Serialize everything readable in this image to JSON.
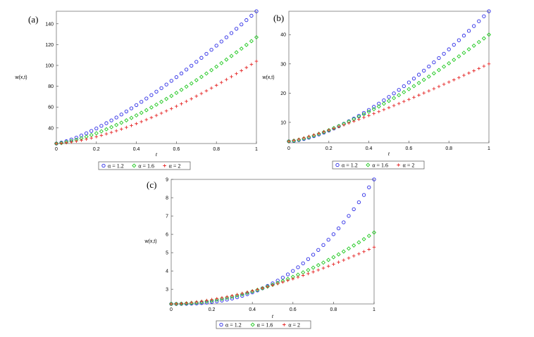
{
  "chart_data": [
    {
      "type": "scatter",
      "panel_label": "(a)",
      "xlabel": "t",
      "ylabel": "w(x,t)",
      "xlim": [
        0,
        1
      ],
      "ylim": [
        25,
        152
      ],
      "x_ticks": [
        0,
        0.2,
        0.4,
        0.6,
        0.8,
        1
      ],
      "x_tick_labels": [
        "0",
        "0.2",
        "0.4",
        "0.6",
        "0.8",
        "1"
      ],
      "y_ticks": [
        40,
        60,
        80,
        100,
        120,
        140
      ],
      "x": [
        0,
        0.025,
        0.05,
        0.075,
        0.1,
        0.125,
        0.15,
        0.175,
        0.2,
        0.225,
        0.25,
        0.275,
        0.3,
        0.325,
        0.35,
        0.375,
        0.4,
        0.425,
        0.45,
        0.475,
        0.5,
        0.525,
        0.55,
        0.575,
        0.6,
        0.625,
        0.65,
        0.675,
        0.7,
        0.725,
        0.75,
        0.775,
        0.8,
        0.825,
        0.85,
        0.875,
        0.9,
        0.925,
        0.95,
        0.975,
        1
      ],
      "series": [
        {
          "name": "α = 1.2",
          "marker": "circle",
          "color": "#2a2ae6",
          "y_start": 25,
          "y_end": 152,
          "exponent": 1.35
        },
        {
          "name": "α = 1.6",
          "marker": "diamond",
          "color": "#22c922",
          "y_start": 25,
          "y_end": 127,
          "exponent": 1.45
        },
        {
          "name": "α = 2",
          "marker": "plus",
          "color": "#e62a2a",
          "y_start": 25,
          "y_end": 104,
          "exponent": 1.55
        }
      ],
      "legend_position": "bottom"
    },
    {
      "type": "scatter",
      "panel_label": "(b)",
      "xlabel": "t",
      "ylabel": "w(x,t)",
      "xlim": [
        0,
        1
      ],
      "ylim": [
        3,
        48
      ],
      "x_ticks": [
        0,
        0.2,
        0.4,
        0.6,
        0.8,
        1
      ],
      "x_tick_labels": [
        "0",
        "0.2",
        "0.4",
        "0.6",
        "0.8",
        "1"
      ],
      "y_ticks": [
        10,
        20,
        30,
        40
      ],
      "x": [
        0,
        0.025,
        0.05,
        0.075,
        0.1,
        0.125,
        0.15,
        0.175,
        0.2,
        0.225,
        0.25,
        0.275,
        0.3,
        0.325,
        0.35,
        0.375,
        0.4,
        0.425,
        0.45,
        0.475,
        0.5,
        0.525,
        0.55,
        0.575,
        0.6,
        0.625,
        0.65,
        0.675,
        0.7,
        0.725,
        0.75,
        0.775,
        0.8,
        0.825,
        0.85,
        0.875,
        0.9,
        0.925,
        0.95,
        0.975,
        1
      ],
      "series": [
        {
          "name": "α = 1.2",
          "marker": "circle",
          "color": "#2a2ae6",
          "y_start": 3.5,
          "y_end": 48,
          "exponent": 1.55
        },
        {
          "name": "α = 1.6",
          "marker": "diamond",
          "color": "#22c922",
          "y_start": 3.5,
          "y_end": 40,
          "exponent": 1.4
        },
        {
          "name": "α = 2",
          "marker": "plus",
          "color": "#e62a2a",
          "y_start": 3.5,
          "y_end": 30,
          "exponent": 1.2
        }
      ],
      "legend_position": "bottom"
    },
    {
      "type": "scatter",
      "panel_label": "(c)",
      "xlabel": "t",
      "ylabel": "w(x,t)",
      "xlim": [
        0,
        1
      ],
      "ylim": [
        2.2,
        9
      ],
      "x_ticks": [
        0,
        0.2,
        0.4,
        0.6,
        0.8,
        1
      ],
      "x_tick_labels": [
        "0",
        "0.2",
        "0.4",
        "0.6",
        "0.8",
        "1"
      ],
      "y_ticks": [
        3,
        4,
        5,
        6,
        7,
        8,
        9
      ],
      "x": [
        0,
        0.025,
        0.05,
        0.075,
        0.1,
        0.125,
        0.15,
        0.175,
        0.2,
        0.225,
        0.25,
        0.275,
        0.3,
        0.325,
        0.35,
        0.375,
        0.4,
        0.425,
        0.45,
        0.475,
        0.5,
        0.525,
        0.55,
        0.575,
        0.6,
        0.625,
        0.65,
        0.675,
        0.7,
        0.725,
        0.75,
        0.775,
        0.8,
        0.825,
        0.85,
        0.875,
        0.9,
        0.925,
        0.95,
        0.975,
        1
      ],
      "series": [
        {
          "name": "α = 1.2",
          "marker": "circle",
          "color": "#2a2ae6",
          "y_start": 2.2,
          "y_end": 9,
          "exponent": 2.6
        },
        {
          "name": "α = 1.6",
          "marker": "diamond",
          "color": "#22c922",
          "y_start": 2.2,
          "y_end": 6.1,
          "exponent": 1.9
        },
        {
          "name": "α = 2",
          "marker": "plus",
          "color": "#e62a2a",
          "y_start": 2.2,
          "y_end": 5.3,
          "exponent": 1.6
        }
      ],
      "legend_position": "bottom"
    }
  ]
}
